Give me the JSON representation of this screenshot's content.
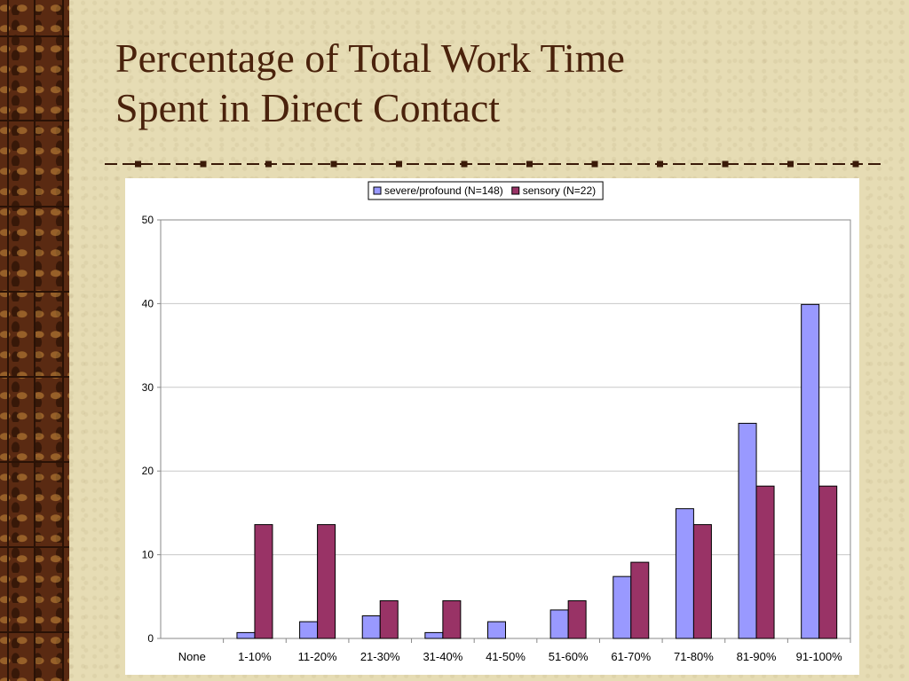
{
  "slide": {
    "title_line1": "Percentage of Total Work Time",
    "title_line2": "Spent in Direct Contact"
  },
  "colors": {
    "series1": "#9999ff",
    "series2": "#993366",
    "title": "#4a220c",
    "background": "#e6dcb4",
    "strip": "#5a2a12"
  },
  "chart_data": {
    "type": "bar",
    "categories": [
      "None",
      "1-10%",
      "11-20%",
      "21-30%",
      "31-40%",
      "41-50%",
      "51-60%",
      "61-70%",
      "71-80%",
      "81-90%",
      "91-100%"
    ],
    "series": [
      {
        "name": "severe/profound (N=148)",
        "values": [
          0,
          0.7,
          2.0,
          2.7,
          0.7,
          2.0,
          3.4,
          7.4,
          15.5,
          25.7,
          39.9
        ]
      },
      {
        "name": "sensory (N=22)",
        "values": [
          0,
          13.6,
          13.6,
          4.5,
          4.5,
          0,
          4.5,
          9.1,
          13.6,
          18.2,
          18.2
        ]
      }
    ],
    "ylim": [
      0,
      50
    ],
    "yticks": [
      0,
      10,
      20,
      30,
      40,
      50
    ],
    "grid": true,
    "legend": "top-center"
  }
}
